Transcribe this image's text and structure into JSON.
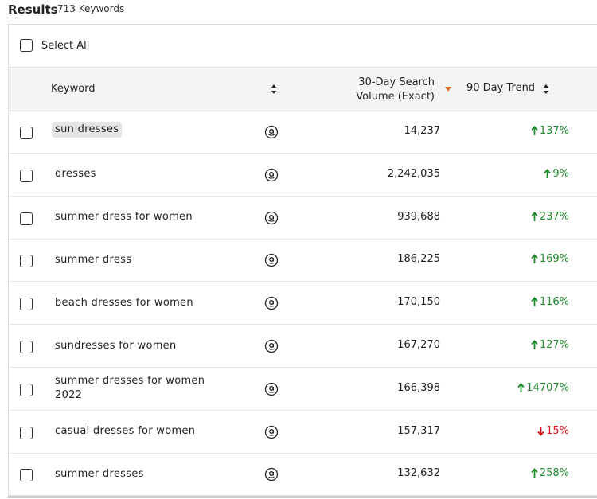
{
  "header": {
    "title": "Results",
    "subtitle": "713 Keywords"
  },
  "select_all": "Select All",
  "table": {
    "columns": {
      "keyword": "Keyword",
      "volume": "30-Day Search Volume (Exact)",
      "trend": "90 Day Trend"
    },
    "rows": [
      {
        "keyword": "sun dresses",
        "highlighted": true,
        "volume": "14,237",
        "trend": "137%",
        "direction": "up"
      },
      {
        "keyword": "dresses",
        "volume": "2,242,035",
        "trend": "9%",
        "direction": "up"
      },
      {
        "keyword": "summer dress for women",
        "volume": "939,688",
        "trend": "237%",
        "direction": "up"
      },
      {
        "keyword": "summer dress",
        "volume": "186,225",
        "trend": "169%",
        "direction": "up"
      },
      {
        "keyword": "beach dresses for women",
        "volume": "170,150",
        "trend": "116%",
        "direction": "up"
      },
      {
        "keyword": "sundresses for women",
        "volume": "167,270",
        "trend": "127%",
        "direction": "up"
      },
      {
        "keyword": "summer dresses for women 2022",
        "volume": "166,398",
        "trend": "14707%",
        "direction": "up"
      },
      {
        "keyword": "casual dresses for women",
        "volume": "157,317",
        "trend": "15%",
        "direction": "down"
      },
      {
        "keyword": "summer dresses",
        "volume": "132,632",
        "trend": "258%",
        "direction": "up"
      }
    ]
  }
}
